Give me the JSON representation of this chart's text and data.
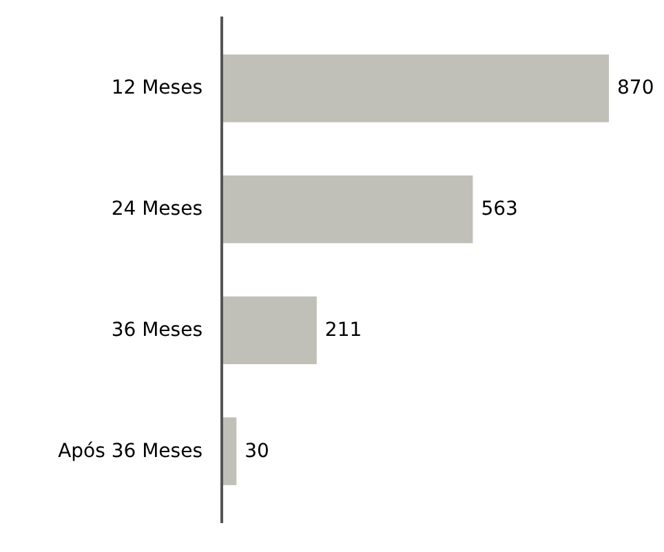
{
  "chart_data": {
    "type": "bar",
    "orientation": "horizontal",
    "categories": [
      "12 Meses",
      "24 Meses",
      "36 Meses",
      "Após 36 Meses"
    ],
    "values": [
      870,
      563,
      211,
      30
    ],
    "color": "#c0c0b9",
    "data_labels": true
  }
}
